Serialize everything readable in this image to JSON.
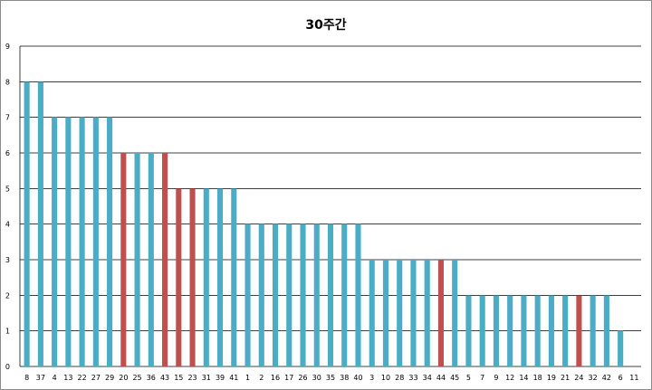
{
  "chart_data": {
    "type": "bar",
    "title": "30주간",
    "xlabel": "",
    "ylabel": "",
    "ylim": [
      0,
      9
    ],
    "yticks": [
      0,
      1,
      2,
      3,
      4,
      5,
      6,
      7,
      8,
      9
    ],
    "grid": true,
    "legend": "none",
    "categories": [
      "8",
      "37",
      "4",
      "13",
      "22",
      "27",
      "29",
      "20",
      "25",
      "36",
      "43",
      "15",
      "23",
      "31",
      "39",
      "41",
      "1",
      "2",
      "16",
      "17",
      "26",
      "30",
      "35",
      "38",
      "40",
      "3",
      "10",
      "28",
      "33",
      "34",
      "44",
      "45",
      "5",
      "7",
      "9",
      "12",
      "14",
      "18",
      "19",
      "21",
      "24",
      "32",
      "42",
      "6",
      "11"
    ],
    "values": [
      8,
      8,
      7,
      7,
      7,
      7,
      7,
      6,
      6,
      6,
      6,
      5,
      5,
      5,
      5,
      5,
      4,
      4,
      4,
      4,
      4,
      4,
      4,
      4,
      4,
      3,
      3,
      3,
      3,
      3,
      3,
      3,
      2,
      2,
      2,
      2,
      2,
      2,
      2,
      2,
      2,
      2,
      2,
      1,
      0
    ],
    "highlighted": [
      "20",
      "43",
      "15",
      "23",
      "44",
      "24"
    ],
    "colors": {
      "bar": "#4bacc6",
      "highlight": "#c0504d",
      "grid": "#000000"
    }
  }
}
